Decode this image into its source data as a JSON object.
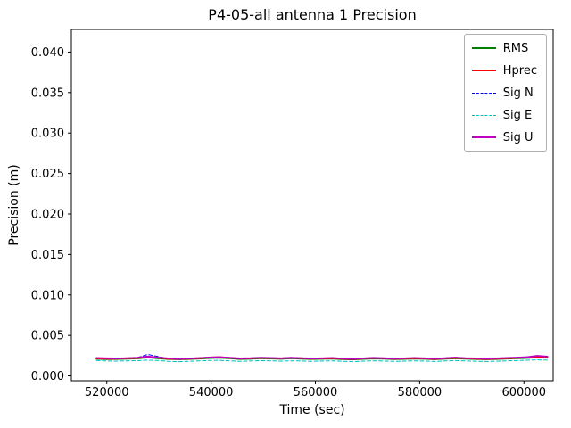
{
  "chart_data": {
    "type": "line",
    "title": "P4-05-all antenna 1 Precision",
    "xlabel": "Time (sec)",
    "ylabel": "Precision (m)",
    "xlim": [
      513200,
      605600
    ],
    "ylim": [
      -0.0006,
      0.0428
    ],
    "grid": false,
    "legend_position": "upper right",
    "xticks": [
      520000,
      540000,
      560000,
      580000,
      600000
    ],
    "xtick_labels": [
      "520000",
      "540000",
      "560000",
      "580000",
      "600000"
    ],
    "yticks": [
      0.0,
      0.005,
      0.01,
      0.015,
      0.02,
      0.025,
      0.03,
      0.035,
      0.04
    ],
    "ytick_labels": [
      "0.000",
      "0.005",
      "0.010",
      "0.015",
      "0.020",
      "0.025",
      "0.030",
      "0.035",
      "0.040"
    ],
    "x": [
      518000,
      519966,
      521932,
      523898,
      525864,
      527830,
      529796,
      531762,
      533728,
      535694,
      537660,
      539626,
      541592,
      543558,
      545524,
      547490,
      549456,
      551422,
      553388,
      555354,
      557320,
      559286,
      561252,
      563218,
      565184,
      567150,
      569116,
      571082,
      573048,
      575014,
      576980,
      578946,
      580912,
      582878,
      584844,
      586810,
      588776,
      590742,
      592708,
      594674,
      596640,
      598606,
      600572,
      602538,
      604504
    ],
    "series": [
      {
        "name": "RMS",
        "color": "#008000",
        "style": "solid",
        "width": 1.8,
        "values": [
          0.0021,
          0.00206,
          0.00208,
          0.00212,
          0.00215,
          0.00228,
          0.00218,
          0.00208,
          0.00204,
          0.00208,
          0.00213,
          0.0022,
          0.00224,
          0.00216,
          0.00208,
          0.0021,
          0.00216,
          0.00214,
          0.0021,
          0.00216,
          0.00212,
          0.00208,
          0.0021,
          0.00213,
          0.00206,
          0.00202,
          0.00209,
          0.00214,
          0.00211,
          0.00206,
          0.00209,
          0.00213,
          0.0021,
          0.00204,
          0.00211,
          0.00216,
          0.00211,
          0.00208,
          0.00204,
          0.00208,
          0.00213,
          0.00216,
          0.00221,
          0.00228,
          0.00224
        ]
      },
      {
        "name": "Hprec",
        "color": "#ff0000",
        "style": "solid",
        "width": 1.8,
        "values": [
          0.00215,
          0.0021,
          0.00212,
          0.00218,
          0.0022,
          0.00235,
          0.00225,
          0.00212,
          0.00208,
          0.00212,
          0.00218,
          0.00228,
          0.00232,
          0.00222,
          0.00212,
          0.00215,
          0.00222,
          0.0022,
          0.00215,
          0.00222,
          0.00218,
          0.00212,
          0.00215,
          0.00218,
          0.0021,
          0.00206,
          0.00214,
          0.0022,
          0.00216,
          0.0021,
          0.00214,
          0.00218,
          0.00214,
          0.00208,
          0.00216,
          0.00222,
          0.00216,
          0.00212,
          0.00208,
          0.00212,
          0.00218,
          0.00222,
          0.00228,
          0.00235,
          0.0023
        ]
      },
      {
        "name": "Sig N",
        "color": "#0000ff",
        "style": "dashed",
        "width": 1,
        "values": [
          0.0022,
          0.00215,
          0.0021,
          0.0022,
          0.00225,
          0.00265,
          0.0024,
          0.00215,
          0.00205,
          0.0021,
          0.0022,
          0.00225,
          0.0023,
          0.0022,
          0.0021,
          0.00215,
          0.00225,
          0.0022,
          0.00215,
          0.0022,
          0.00215,
          0.0021,
          0.00215,
          0.0022,
          0.0021,
          0.00205,
          0.00215,
          0.0022,
          0.00215,
          0.0021,
          0.00215,
          0.0022,
          0.00215,
          0.0021,
          0.0022,
          0.0023,
          0.0022,
          0.00215,
          0.0021,
          0.00215,
          0.0022,
          0.00225,
          0.00235,
          0.0025,
          0.0024
        ]
      },
      {
        "name": "Sig E",
        "color": "#00bfbf",
        "style": "dashed",
        "width": 1,
        "values": [
          0.0019,
          0.00185,
          0.00182,
          0.00186,
          0.00188,
          0.00195,
          0.0019,
          0.0018,
          0.00175,
          0.0018,
          0.00185,
          0.0019,
          0.00192,
          0.00186,
          0.0018,
          0.00183,
          0.00188,
          0.00186,
          0.00182,
          0.00186,
          0.00184,
          0.0018,
          0.00183,
          0.00186,
          0.0018,
          0.00176,
          0.00182,
          0.00186,
          0.00183,
          0.00179,
          0.00182,
          0.00186,
          0.00183,
          0.00178,
          0.00184,
          0.00189,
          0.00184,
          0.00181,
          0.00178,
          0.00181,
          0.00186,
          0.00189,
          0.00193,
          0.00198,
          0.00194
        ]
      },
      {
        "name": "Sig U",
        "color": "#bf00bf",
        "style": "solid",
        "width": 1.8,
        "values": [
          0.00222,
          0.00218,
          0.00215,
          0.0022,
          0.00224,
          0.0024,
          0.00228,
          0.00216,
          0.0021,
          0.00215,
          0.00221,
          0.00228,
          0.00232,
          0.00224,
          0.00216,
          0.00219,
          0.00225,
          0.00222,
          0.00218,
          0.00224,
          0.0022,
          0.00215,
          0.00218,
          0.00222,
          0.00214,
          0.00209,
          0.00217,
          0.00223,
          0.00219,
          0.00213,
          0.00217,
          0.00222,
          0.00218,
          0.00212,
          0.0022,
          0.00226,
          0.0022,
          0.00216,
          0.00212,
          0.00216,
          0.00222,
          0.00226,
          0.00232,
          0.00248,
          0.00238
        ]
      }
    ]
  }
}
